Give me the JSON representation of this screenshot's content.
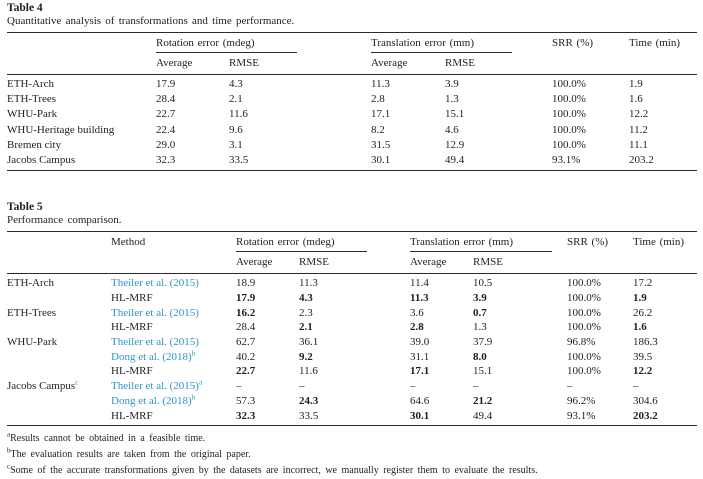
{
  "colors": {
    "citation_link": "#2e93c9",
    "footnote_marker": "#2fa6bd",
    "text": "#1f1f1f",
    "rule": "#2b2b2b"
  },
  "table4": {
    "label": "Table 4",
    "caption": "Quantitative analysis of transformations and time performance.",
    "group_headers": [
      "Rotation error (mdeg)",
      "Translation error (mm)",
      "SRR (%)",
      "Time (min)"
    ],
    "sub_headers": [
      "Average",
      "RMSE",
      "Average",
      "RMSE"
    ],
    "rows": [
      {
        "dataset": "ETH-Arch",
        "values": [
          "17.9",
          "4.3",
          "11.3",
          "3.9",
          "100.0%",
          "1.9"
        ]
      },
      {
        "dataset": "ETH-Trees",
        "values": [
          "28.4",
          "2.1",
          "2.8",
          "1.3",
          "100.0%",
          "1.6"
        ]
      },
      {
        "dataset": "WHU-Park",
        "values": [
          "22.7",
          "11.6",
          "17.1",
          "15.1",
          "100.0%",
          "12.2"
        ]
      },
      {
        "dataset": "WHU-Heritage building",
        "values": [
          "22.4",
          "9.6",
          "8.2",
          "4.6",
          "100.0%",
          "11.2"
        ]
      },
      {
        "dataset": "Bremen city",
        "values": [
          "29.0",
          "3.1",
          "31.5",
          "12.9",
          "100.0%",
          "11.1"
        ]
      },
      {
        "dataset": "Jacobs Campus",
        "values": [
          "32.3",
          "33.5",
          "30.1",
          "49.4",
          "93.1%",
          "203.2"
        ]
      }
    ]
  },
  "table5": {
    "label": "Table 5",
    "caption": "Performance comparison.",
    "method_header": "Method",
    "group_headers": [
      "Rotation error (mdeg)",
      "Translation error (mm)",
      "SRR (%)",
      "Time (min)"
    ],
    "sub_headers": [
      "Average",
      "RMSE",
      "Average",
      "RMSE"
    ],
    "rows": [
      {
        "dataset": "ETH-Arch",
        "dataset_sup": "",
        "method": "Theiler et al. (2015)",
        "method_sup": "",
        "link": true,
        "values": [
          "18.9",
          "11.3",
          "11.4",
          "10.5",
          "100.0%",
          "17.2"
        ],
        "bold": []
      },
      {
        "dataset": "",
        "dataset_sup": "",
        "method": "HL-MRF",
        "method_sup": "",
        "link": false,
        "values": [
          "17.9",
          "4.3",
          "11.3",
          "3.9",
          "100.0%",
          "1.9"
        ],
        "bold": [
          0,
          1,
          2,
          3,
          5
        ]
      },
      {
        "dataset": "ETH-Trees",
        "dataset_sup": "",
        "method": "Theiler et al. (2015)",
        "method_sup": "",
        "link": true,
        "values": [
          "16.2",
          "2.3",
          "3.6",
          "0.7",
          "100.0%",
          "26.2"
        ],
        "bold": [
          0,
          3
        ]
      },
      {
        "dataset": "",
        "dataset_sup": "",
        "method": "HL-MRF",
        "method_sup": "",
        "link": false,
        "values": [
          "28.4",
          "2.1",
          "2.8",
          "1.3",
          "100.0%",
          "1.6"
        ],
        "bold": [
          1,
          2,
          5
        ]
      },
      {
        "dataset": "WHU-Park",
        "dataset_sup": "",
        "method": "Theiler et al. (2015)",
        "method_sup": "",
        "link": true,
        "values": [
          "62.7",
          "36.1",
          "39.0",
          "37.9",
          "96.8%",
          "186.3"
        ],
        "bold": []
      },
      {
        "dataset": "",
        "dataset_sup": "",
        "method": "Dong et al. (2018)",
        "method_sup": "b",
        "link": true,
        "values": [
          "40.2",
          "9.2",
          "31.1",
          "8.0",
          "100.0%",
          "39.5"
        ],
        "bold": [
          1,
          3
        ]
      },
      {
        "dataset": "",
        "dataset_sup": "",
        "method": "HL-MRF",
        "method_sup": "",
        "link": false,
        "values": [
          "22.7",
          "11.6",
          "17.1",
          "15.1",
          "100.0%",
          "12.2"
        ],
        "bold": [
          0,
          2,
          5
        ]
      },
      {
        "dataset": "Jacobs Campus",
        "dataset_sup": "c",
        "method": "Theiler et al. (2015)",
        "method_sup": "a",
        "link": true,
        "values": [
          "–",
          "–",
          "–",
          "–",
          "–",
          "–"
        ],
        "bold": []
      },
      {
        "dataset": "",
        "dataset_sup": "",
        "method": "Dong et al. (2018)",
        "method_sup": "b",
        "link": true,
        "values": [
          "57.3",
          "24.3",
          "64.6",
          "21.2",
          "96.2%",
          "304.6"
        ],
        "bold": [
          1,
          3
        ]
      },
      {
        "dataset": "",
        "dataset_sup": "",
        "method": "HL-MRF",
        "method_sup": "",
        "link": false,
        "values": [
          "32.3",
          "33.5",
          "30.1",
          "49.4",
          "93.1%",
          "203.2"
        ],
        "bold": [
          0,
          2,
          5
        ]
      }
    ]
  },
  "footnotes": {
    "items": [
      {
        "sup": "a",
        "text": "Results cannot be obtained in a feasible time."
      },
      {
        "sup": "b",
        "text": "The evaluation results are taken from the original paper."
      },
      {
        "sup": "c",
        "text": "Some of the accurate transformations given by the datasets are incorrect, we manually register them to evaluate the results."
      }
    ]
  }
}
